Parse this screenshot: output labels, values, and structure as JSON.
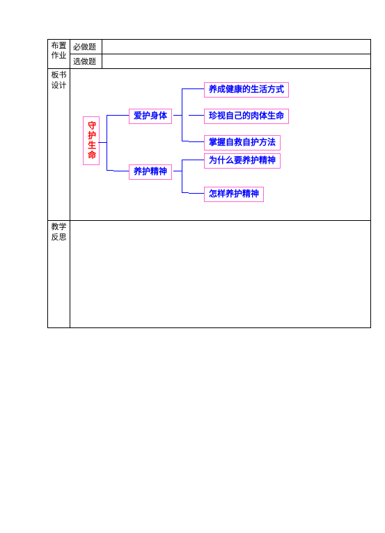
{
  "homework": {
    "row_label": "布置\n作业",
    "required_label": "必做题",
    "optional_label": "选做题",
    "required_value": "",
    "optional_value": ""
  },
  "board": {
    "row_label": "板书设计",
    "root": {
      "text": "守护生命",
      "color": "#ff0000"
    },
    "mids": [
      {
        "id": "body",
        "text": "爱护身体",
        "color": "#0000ff"
      },
      {
        "id": "spirit",
        "text": "养护精神",
        "color": "#0000ff"
      }
    ],
    "leaves": {
      "body": [
        {
          "text": "养成健康的生活方式",
          "color": "#0000ff"
        },
        {
          "text": "珍视自己的肉体生命",
          "color": "#0000ff"
        },
        {
          "text": "掌握自救自护方法",
          "color": "#0000ff"
        }
      ],
      "spirit": [
        {
          "text": "为什么要养护精神",
          "color": "#0000ff"
        },
        {
          "text": "怎样养护精神",
          "color": "#0000ff"
        }
      ]
    },
    "box_border_color": "#ff66cc",
    "line_color": "#0000ff"
  },
  "reflection": {
    "row_label": "教学反思",
    "content": ""
  }
}
